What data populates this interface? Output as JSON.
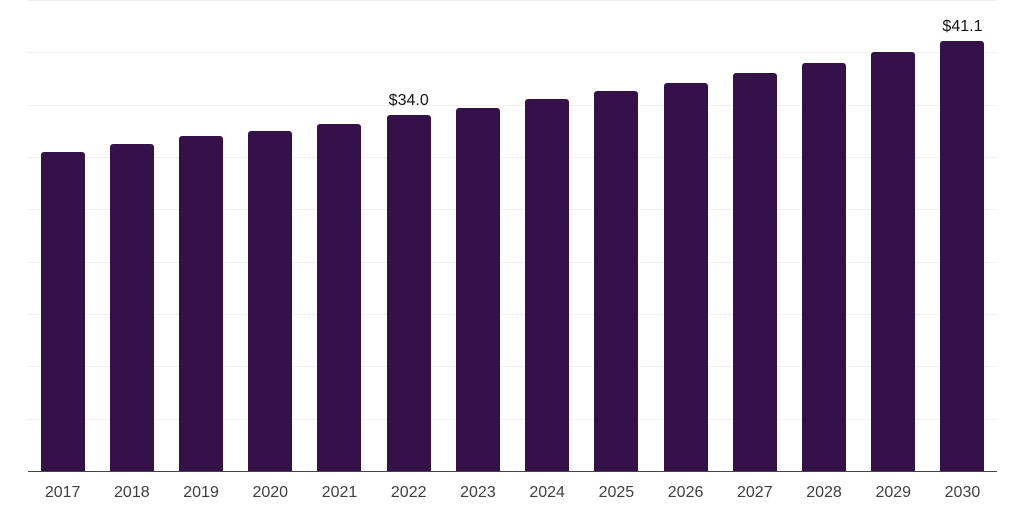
{
  "chart_data": {
    "type": "bar",
    "title": "",
    "categories": [
      "2017",
      "2018",
      "2019",
      "2020",
      "2021",
      "2022",
      "2023",
      "2024",
      "2025",
      "2026",
      "2027",
      "2028",
      "2029",
      "2030"
    ],
    "values": [
      30.5,
      31.2,
      32.0,
      32.5,
      33.2,
      34.0,
      34.7,
      35.5,
      36.3,
      37.1,
      38.0,
      39.0,
      40.0,
      41.1
    ],
    "data_labels": [
      "",
      "",
      "",
      "",
      "",
      "$34.0",
      "",
      "",
      "",
      "",
      "",
      "",
      "",
      "$41.1"
    ],
    "ylim": [
      0,
      45
    ],
    "gridline_step": 5,
    "grid": true,
    "legend": "none",
    "y_axis_labels_visible": false,
    "colors": {
      "bar": "#341149",
      "gridline": "#f1f1f1",
      "axis": "#444444",
      "tick_label": "#3f3f3f",
      "value_label": "#151515",
      "background": "#ffffff"
    }
  }
}
